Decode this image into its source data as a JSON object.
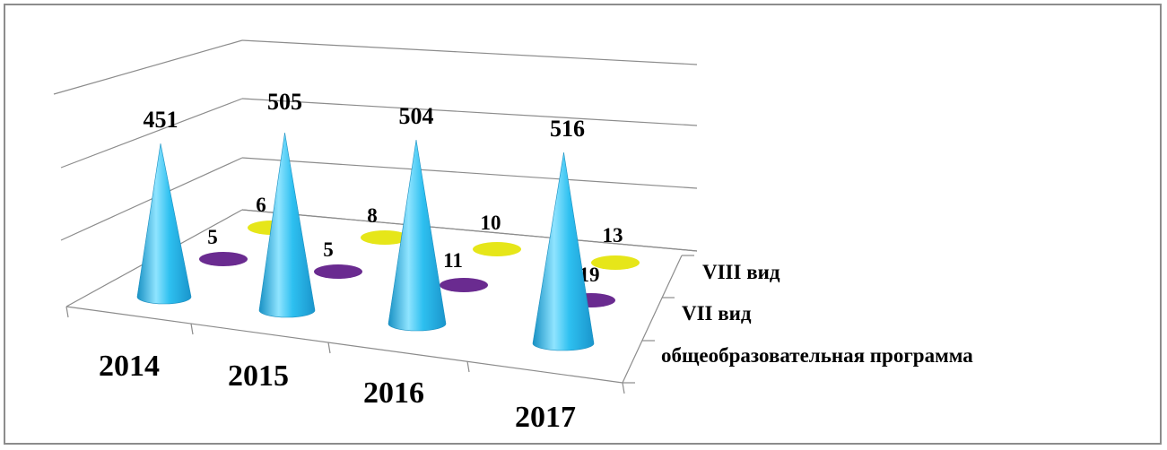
{
  "chart_data": {
    "type": "bar",
    "style": "3d-cone",
    "categories": [
      "2014",
      "2015",
      "2016",
      "2017"
    ],
    "series": [
      {
        "name": "общеобразовательная программа",
        "values": [
          451,
          505,
          504,
          516
        ],
        "color": "#22b4e6"
      },
      {
        "name": "VII вид",
        "values": [
          5,
          5,
          11,
          19
        ],
        "color": "#6a2b90"
      },
      {
        "name": "VIII вид",
        "values": [
          6,
          8,
          10,
          13
        ],
        "color": "#e6e619"
      }
    ],
    "grid": true,
    "axis_color": "#8c8c8c"
  }
}
